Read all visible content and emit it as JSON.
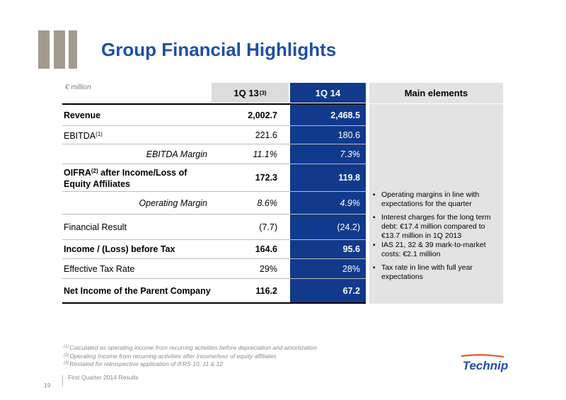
{
  "slide": {
    "title": "Group Financial Highlights",
    "unit": "€ million",
    "page_number": "19",
    "footer": "First Quarter 2014 Results"
  },
  "table": {
    "col_prev_label": "1Q 13",
    "col_prev_note": "(3)",
    "col_cur_label": "1Q 14",
    "rows": [
      {
        "label": "Revenue",
        "prev": "2,002.7",
        "cur": "2,468.5"
      },
      {
        "label": "EBITDA",
        "note": "(1)",
        "prev": "221.6",
        "cur": "180.6"
      },
      {
        "label": "EBITDA Margin",
        "prev": "11.1%",
        "cur": "7.3%"
      },
      {
        "label_a": "OIFRA",
        "note": "(2)",
        "label_b": " after Income/Loss of Equity Affiliates",
        "prev": "172.3",
        "cur": "119.8"
      },
      {
        "label": "Operating Margin",
        "prev": "8.6%",
        "cur": "4.9%"
      },
      {
        "label": "Financial Result",
        "prev": "(7.7)",
        "cur": "(24.2)"
      },
      {
        "label": "Income / (Loss) before Tax",
        "prev": "164.6",
        "cur": "95.6"
      },
      {
        "label": "Effective Tax Rate",
        "prev": "29%",
        "cur": "28%"
      },
      {
        "label": "Net Income of the Parent Company",
        "prev": "116.2",
        "cur": "67.2"
      }
    ]
  },
  "main_elements": {
    "header": "Main elements",
    "bullets": [
      "Operating margins in line with expectations for the quarter",
      "Interest charges for the long term debt: €17.4 million compared to €13.7 million in 1Q 2013",
      "IAS 21, 32 & 39  mark-to-market costs: €2.1 million",
      "Tax rate in line with full year expectations"
    ]
  },
  "footnotes": [
    {
      "mark": "(1)",
      "text": "Calculated as operating income from recurring activities before depreciation and amortization"
    },
    {
      "mark": "(2)",
      "text": "Operating Income from recurring activities after income/loss of equity affiliates"
    },
    {
      "mark": "(3)",
      "text": "Restated for retrospective application of IFRS 10, 11 & 12"
    }
  ],
  "brand": {
    "name": "Technip",
    "color": "#1f4fa2",
    "accent": "#e85a1b"
  },
  "colors": {
    "title": "#1f4fa2",
    "current_column": "#113a8c",
    "previous_header": "#dcdcdc",
    "panel": "#e3e3e3"
  }
}
